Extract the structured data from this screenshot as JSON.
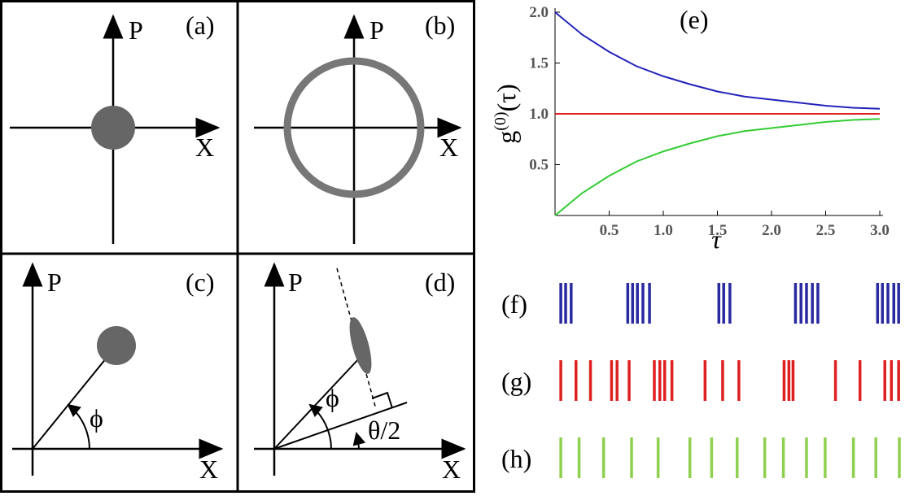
{
  "diagrams": [
    {
      "label": "(a)",
      "p_axis": "P",
      "x_axis": "X"
    },
    {
      "label": "(b)",
      "p_axis": "P",
      "x_axis": "X"
    },
    {
      "label": "(c)",
      "p_axis": "P",
      "x_axis": "X",
      "angle": "ϕ"
    },
    {
      "label": "(d)",
      "p_axis": "P",
      "x_axis": "X",
      "angle": "ϕ",
      "angle2": "θ/2"
    }
  ],
  "chart_data": {
    "type": "line",
    "label": "(e)",
    "ylabel_base": "g",
    "ylabel_sup": "(0)",
    "ylabel_rest": "(τ)",
    "xlabel": "τ",
    "x": [
      0,
      0.25,
      0.5,
      0.75,
      1,
      1.25,
      1.5,
      1.75,
      2,
      2.25,
      2.5,
      2.75,
      3
    ],
    "xlim": [
      0,
      3
    ],
    "ylim": [
      0,
      2
    ],
    "xticks": [
      0.5,
      {
        "value": 1,
        "label": "1.0"
      },
      1.5,
      {
        "value": 2,
        "label": "2.0"
      },
      2.5,
      {
        "value": 3,
        "label": "3.0"
      }
    ],
    "yticks": [
      0.5,
      {
        "value": 1,
        "label": "1.0"
      },
      1.5,
      {
        "value": 2,
        "label": "2.0"
      }
    ],
    "series": [
      {
        "color": "#2222bb",
        "values": [
          2,
          1.78,
          1.61,
          1.47,
          1.37,
          1.29,
          1.22,
          1.17,
          1.14,
          1.11,
          1.08,
          1.06,
          1.05
        ]
      },
      {
        "color": "#dd2222",
        "values": [
          1,
          1,
          1,
          1,
          1,
          1,
          1,
          1,
          1,
          1,
          1,
          1,
          1
        ]
      },
      {
        "color": "#33cc33",
        "values": [
          0,
          0.22,
          0.39,
          0.53,
          0.63,
          0.71,
          0.78,
          0.83,
          0.86,
          0.89,
          0.92,
          0.94,
          0.95
        ]
      }
    ]
  },
  "pulse_trains": [
    {
      "label": "(f)",
      "color": "#2a2aa0",
      "times": [
        1.2,
        2.6,
        4.2,
        20.6,
        22,
        23.4,
        25,
        26.9,
        47,
        48.4,
        50.2,
        69.2,
        70.8,
        72.4,
        74.1,
        75.7,
        93,
        94.4,
        96,
        97.7,
        99.1
      ]
    },
    {
      "label": "(g)",
      "color": "#dd2020",
      "times": [
        1.2,
        5.6,
        9.8,
        15.9,
        17.5,
        21,
        28.3,
        29.9,
        31.3,
        33.4,
        43,
        48.1,
        52.8,
        65.9,
        67.3,
        68.5,
        80.8,
        87.9,
        95.1,
        97,
        99.1
      ]
    },
    {
      "label": "(h)",
      "color": "#8fd050",
      "times": [
        1.2,
        6.5,
        13.6,
        21.7,
        29.4,
        38.6,
        44.9,
        52.3,
        60.3,
        65.7,
        72.4,
        77.8,
        86,
        92.5,
        99.3
      ]
    }
  ]
}
